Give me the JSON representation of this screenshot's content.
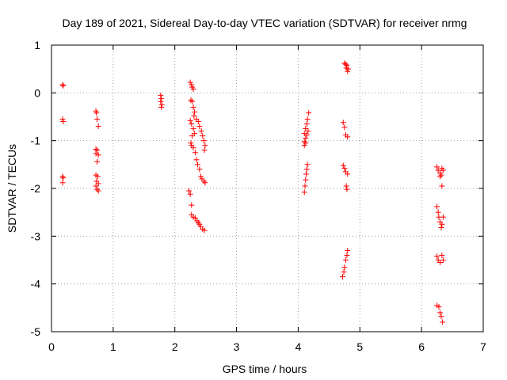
{
  "chart_data": {
    "type": "scatter",
    "title": "Day 189 of 2021, Sidereal Day-to-day VTEC variation (SDTVAR) for receiver nrmg",
    "xlabel": "GPS time / hours",
    "ylabel": "SDTVAR / TECUs",
    "xlim": [
      0,
      7
    ],
    "ylim": [
      -5,
      1
    ],
    "x_ticks": [
      "0",
      "1",
      "2",
      "3",
      "4",
      "5",
      "6",
      "7"
    ],
    "y_ticks": [
      "1",
      "0",
      "-1",
      "-2",
      "-3",
      "-4",
      "-5"
    ],
    "grid": true,
    "marker": "plus",
    "colors": {
      "series": "#ff0000",
      "axis": "#000000",
      "grid": "#a0a0a0",
      "background": "#ffffff"
    },
    "series": [
      {
        "name": "SDTVAR",
        "points": [
          [
            0.18,
            0.17
          ],
          [
            0.19,
            0.15
          ],
          [
            0.18,
            -0.55
          ],
          [
            0.19,
            -0.6
          ],
          [
            0.18,
            -1.75
          ],
          [
            0.19,
            -1.78
          ],
          [
            0.18,
            -1.88
          ],
          [
            0.72,
            -0.38
          ],
          [
            0.73,
            -0.42
          ],
          [
            0.74,
            -0.55
          ],
          [
            0.76,
            -0.7
          ],
          [
            0.72,
            -1.18
          ],
          [
            0.74,
            -1.2
          ],
          [
            0.72,
            -1.27
          ],
          [
            0.76,
            -1.3
          ],
          [
            0.74,
            -1.44
          ],
          [
            0.72,
            -1.72
          ],
          [
            0.75,
            -1.75
          ],
          [
            0.73,
            -1.85
          ],
          [
            0.76,
            -1.9
          ],
          [
            0.72,
            -1.95
          ],
          [
            0.74,
            -2.02
          ],
          [
            0.76,
            -2.05
          ],
          [
            1.77,
            -0.05
          ],
          [
            1.78,
            -0.12
          ],
          [
            1.77,
            -0.18
          ],
          [
            1.79,
            -0.25
          ],
          [
            1.78,
            -0.3
          ],
          [
            2.25,
            0.22
          ],
          [
            2.27,
            0.17
          ],
          [
            2.28,
            0.12
          ],
          [
            2.3,
            0.08
          ],
          [
            2.26,
            -0.15
          ],
          [
            2.28,
            -0.18
          ],
          [
            2.3,
            -0.3
          ],
          [
            2.32,
            -0.4
          ],
          [
            2.31,
            -0.48
          ],
          [
            2.35,
            -0.55
          ],
          [
            2.38,
            -0.6
          ],
          [
            2.4,
            -0.7
          ],
          [
            2.43,
            -0.8
          ],
          [
            2.45,
            -0.9
          ],
          [
            2.47,
            -1.0
          ],
          [
            2.49,
            -1.1
          ],
          [
            2.48,
            -1.2
          ],
          [
            2.25,
            -0.58
          ],
          [
            2.27,
            -0.65
          ],
          [
            2.3,
            -0.75
          ],
          [
            2.32,
            -0.85
          ],
          [
            2.28,
            -0.9
          ],
          [
            2.26,
            -1.05
          ],
          [
            2.27,
            -1.1
          ],
          [
            2.3,
            -1.15
          ],
          [
            2.33,
            -1.25
          ],
          [
            2.35,
            -1.4
          ],
          [
            2.37,
            -1.5
          ],
          [
            2.4,
            -1.6
          ],
          [
            2.42,
            -1.75
          ],
          [
            2.44,
            -1.8
          ],
          [
            2.47,
            -1.85
          ],
          [
            2.49,
            -1.88
          ],
          [
            2.23,
            -2.05
          ],
          [
            2.25,
            -2.12
          ],
          [
            2.27,
            -2.35
          ],
          [
            2.27,
            -2.55
          ],
          [
            2.3,
            -2.6
          ],
          [
            2.33,
            -2.62
          ],
          [
            2.36,
            -2.68
          ],
          [
            2.38,
            -2.72
          ],
          [
            2.4,
            -2.75
          ],
          [
            2.42,
            -2.8
          ],
          [
            2.45,
            -2.85
          ],
          [
            2.48,
            -2.88
          ],
          [
            4.1,
            -0.85
          ],
          [
            4.12,
            -0.75
          ],
          [
            4.14,
            -0.65
          ],
          [
            4.15,
            -0.55
          ],
          [
            4.17,
            -0.42
          ],
          [
            4.1,
            -1.02
          ],
          [
            4.12,
            -0.95
          ],
          [
            4.14,
            -0.88
          ],
          [
            4.16,
            -0.8
          ],
          [
            4.1,
            -1.1
          ],
          [
            4.12,
            -1.05
          ],
          [
            4.1,
            -2.08
          ],
          [
            4.11,
            -1.95
          ],
          [
            4.12,
            -1.82
          ],
          [
            4.13,
            -1.7
          ],
          [
            4.14,
            -1.6
          ],
          [
            4.15,
            -1.5
          ],
          [
            4.75,
            0.62
          ],
          [
            4.77,
            0.6
          ],
          [
            4.79,
            0.58
          ],
          [
            4.78,
            0.52
          ],
          [
            4.81,
            0.5
          ],
          [
            4.8,
            0.45
          ],
          [
            4.73,
            -0.62
          ],
          [
            4.75,
            -0.72
          ],
          [
            4.77,
            -0.88
          ],
          [
            4.8,
            -0.92
          ],
          [
            4.73,
            -1.52
          ],
          [
            4.75,
            -1.58
          ],
          [
            4.77,
            -1.65
          ],
          [
            4.8,
            -1.7
          ],
          [
            4.78,
            -1.95
          ],
          [
            4.79,
            -2.02
          ],
          [
            4.72,
            -3.85
          ],
          [
            4.74,
            -3.75
          ],
          [
            4.75,
            -3.65
          ],
          [
            4.77,
            -3.5
          ],
          [
            4.79,
            -3.4
          ],
          [
            4.8,
            -3.3
          ],
          [
            6.25,
            -1.55
          ],
          [
            6.27,
            -1.62
          ],
          [
            6.3,
            -1.68
          ],
          [
            6.32,
            -1.72
          ],
          [
            6.35,
            -1.62
          ],
          [
            6.33,
            -1.58
          ],
          [
            6.3,
            -1.75
          ],
          [
            6.33,
            -1.95
          ],
          [
            6.25,
            -2.38
          ],
          [
            6.27,
            -2.5
          ],
          [
            6.28,
            -2.6
          ],
          [
            6.3,
            -2.7
          ],
          [
            6.33,
            -2.75
          ],
          [
            6.35,
            -2.6
          ],
          [
            6.32,
            -2.82
          ],
          [
            6.25,
            -3.42
          ],
          [
            6.27,
            -3.5
          ],
          [
            6.3,
            -3.55
          ],
          [
            6.33,
            -3.4
          ],
          [
            6.35,
            -3.5
          ],
          [
            6.25,
            -4.45
          ],
          [
            6.28,
            -4.48
          ],
          [
            6.3,
            -4.6
          ],
          [
            6.32,
            -4.68
          ],
          [
            6.34,
            -4.8
          ]
        ]
      }
    ]
  }
}
